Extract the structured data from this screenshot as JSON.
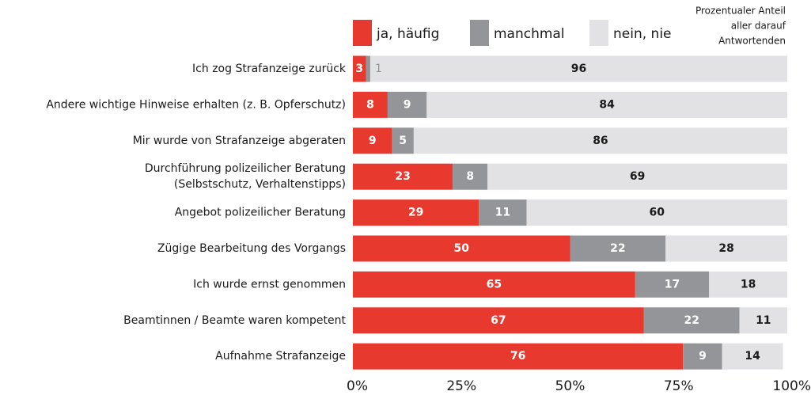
{
  "chart_data": {
    "type": "stacked_barh",
    "annotation": [
      "Prozentualer Anteil",
      "aller darauf",
      "Antwortenden"
    ],
    "categories": [
      "Ich zog Strafanzeige zurück",
      "Andere wichtige Hinweise erhalten (z. B. Opferschutz)",
      "Mir wurde von Strafanzeige abgeraten",
      "Durchführung polizeilicher Beratung\n(Selbstschutz, Verhaltenstipps)",
      "Angebot polizeilicher Beratung",
      "Zügige Bearbeitung des Vorgangs",
      "Ich wurde ernst genommen",
      "Beamtinnen / Beamte waren kompetent",
      "Aufnahme Strafanzeige"
    ],
    "series": [
      {
        "name": "ja, häufig",
        "color": "#e8392f",
        "label_color": "#ffffff",
        "values": [
          3,
          8,
          9,
          23,
          29,
          50,
          65,
          67,
          76
        ]
      },
      {
        "name": "manchmal",
        "color": "#939598",
        "label_color": "#ffffff",
        "values": [
          1,
          9,
          5,
          8,
          11,
          22,
          17,
          22,
          9
        ]
      },
      {
        "name": "nein, nie",
        "color": "#e2e2e4",
        "label_color": "#1a1a1a",
        "values": [
          96,
          84,
          86,
          69,
          60,
          28,
          18,
          11,
          14
        ]
      }
    ],
    "xlim": [
      0,
      100
    ],
    "xticks": [
      {
        "value": 0,
        "label": "0%"
      },
      {
        "value": 25,
        "label": "25%"
      },
      {
        "value": 50,
        "label": "50%"
      },
      {
        "value": 75,
        "label": "75%"
      },
      {
        "value": 100,
        "label": "100%"
      }
    ],
    "legend": "top"
  }
}
